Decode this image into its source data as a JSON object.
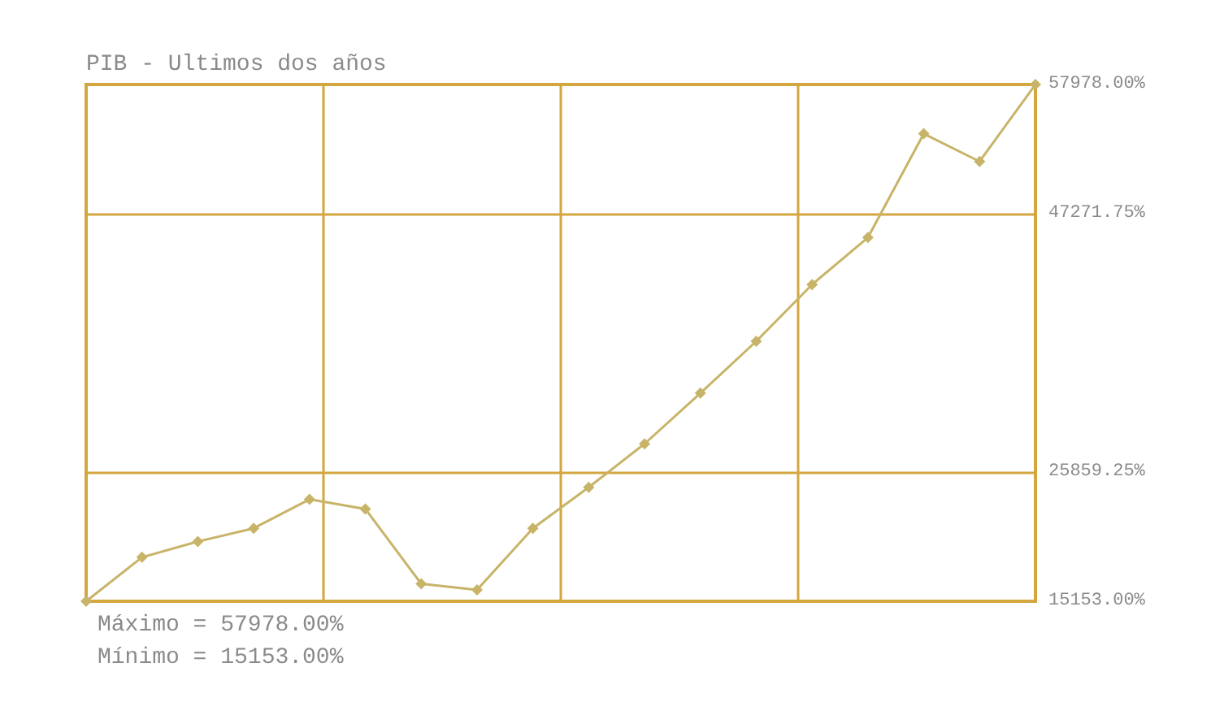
{
  "chart_data": {
    "type": "line",
    "title": "PIB - Ultimos dos años",
    "categories": [
      null,
      null,
      null,
      null,
      null,
      null,
      null,
      null,
      null,
      null,
      null,
      null,
      null,
      null,
      null,
      null,
      null,
      null
    ],
    "series": [
      {
        "color": "#c8b468",
        "values": [
          15153,
          18800,
          20100,
          21200,
          23600,
          22800,
          16600,
          16100,
          21200,
          24600,
          28200,
          32400,
          36700,
          41400,
          45300,
          53900,
          51600,
          57978
        ]
      }
    ],
    "ylim": [
      15153,
      57978
    ],
    "yticks": [
      {
        "value": 15153,
        "label": "15153.00%"
      },
      {
        "value": 25859.25,
        "label": "25859.25%"
      },
      {
        "value": 47271.75,
        "label": "47271.75%"
      },
      {
        "value": 57978,
        "label": "57978.00%"
      }
    ],
    "grid": true,
    "marker": "diamond",
    "line_style": "solid",
    "annotations": [
      "Máximo = 57978.00%",
      "Mínimo = 15153.00%"
    ]
  }
}
